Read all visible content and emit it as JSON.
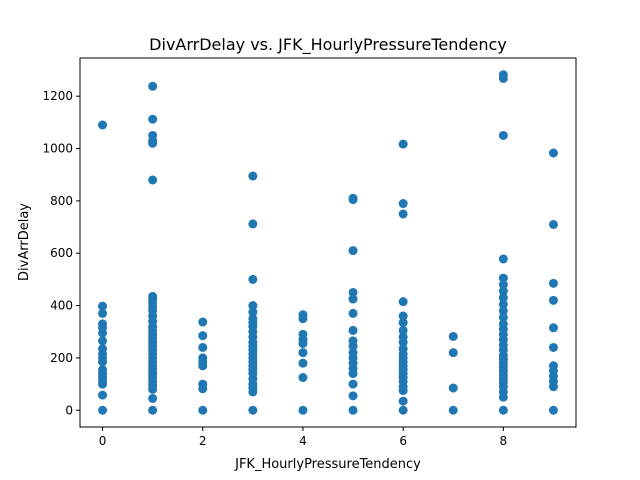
{
  "chart_data": {
    "type": "scatter",
    "title": "DivArrDelay vs. JFK_HourlyPressureTendency",
    "xlabel": "JFK_HourlyPressureTendency",
    "ylabel": "DivArrDelay",
    "xlim": [
      -0.45,
      9.45
    ],
    "ylim": [
      -64,
      1346
    ],
    "xticks": [
      0,
      2,
      4,
      6,
      8
    ],
    "yticks": [
      0,
      200,
      400,
      600,
      800,
      1000,
      1200
    ],
    "grid": false,
    "marker_color": "#1f77b4",
    "series": [
      {
        "points": [
          [
            0,
            0
          ],
          [
            0,
            58
          ],
          [
            0,
            100
          ],
          [
            0,
            112
          ],
          [
            0,
            125
          ],
          [
            0,
            140
          ],
          [
            0,
            155
          ],
          [
            0,
            185
          ],
          [
            0,
            200
          ],
          [
            0,
            215
          ],
          [
            0,
            235
          ],
          [
            0,
            265
          ],
          [
            0,
            295
          ],
          [
            0,
            315
          ],
          [
            0,
            330
          ],
          [
            0,
            370
          ],
          [
            0,
            398
          ],
          [
            0,
            1090
          ],
          [
            1,
            0
          ],
          [
            1,
            45
          ],
          [
            1,
            80
          ],
          [
            1,
            95
          ],
          [
            1,
            110
          ],
          [
            1,
            125
          ],
          [
            1,
            140
          ],
          [
            1,
            155
          ],
          [
            1,
            170
          ],
          [
            1,
            185
          ],
          [
            1,
            200
          ],
          [
            1,
            215
          ],
          [
            1,
            230
          ],
          [
            1,
            245
          ],
          [
            1,
            260
          ],
          [
            1,
            275
          ],
          [
            1,
            290
          ],
          [
            1,
            305
          ],
          [
            1,
            320
          ],
          [
            1,
            340
          ],
          [
            1,
            360
          ],
          [
            1,
            380
          ],
          [
            1,
            395
          ],
          [
            1,
            410
          ],
          [
            1,
            425
          ],
          [
            1,
            435
          ],
          [
            1,
            880
          ],
          [
            1,
            1020
          ],
          [
            1,
            1030
          ],
          [
            1,
            1050
          ],
          [
            1,
            1112
          ],
          [
            1,
            1238
          ],
          [
            2,
            0
          ],
          [
            2,
            82
          ],
          [
            2,
            100
          ],
          [
            2,
            170
          ],
          [
            2,
            185
          ],
          [
            2,
            200
          ],
          [
            2,
            240
          ],
          [
            2,
            285
          ],
          [
            2,
            337
          ],
          [
            3,
            0
          ],
          [
            3,
            70
          ],
          [
            3,
            85
          ],
          [
            3,
            100
          ],
          [
            3,
            120
          ],
          [
            3,
            140
          ],
          [
            3,
            155
          ],
          [
            3,
            170
          ],
          [
            3,
            185
          ],
          [
            3,
            200
          ],
          [
            3,
            215
          ],
          [
            3,
            230
          ],
          [
            3,
            245
          ],
          [
            3,
            260
          ],
          [
            3,
            280
          ],
          [
            3,
            300
          ],
          [
            3,
            320
          ],
          [
            3,
            335
          ],
          [
            3,
            350
          ],
          [
            3,
            375
          ],
          [
            3,
            400
          ],
          [
            3,
            500
          ],
          [
            3,
            712
          ],
          [
            3,
            895
          ],
          [
            4,
            0
          ],
          [
            4,
            125
          ],
          [
            4,
            180
          ],
          [
            4,
            220
          ],
          [
            4,
            255
          ],
          [
            4,
            270
          ],
          [
            4,
            290
          ],
          [
            4,
            350
          ],
          [
            4,
            365
          ],
          [
            5,
            0
          ],
          [
            5,
            55
          ],
          [
            5,
            100
          ],
          [
            5,
            140
          ],
          [
            5,
            160
          ],
          [
            5,
            180
          ],
          [
            5,
            200
          ],
          [
            5,
            220
          ],
          [
            5,
            245
          ],
          [
            5,
            265
          ],
          [
            5,
            305
          ],
          [
            5,
            370
          ],
          [
            5,
            425
          ],
          [
            5,
            450
          ],
          [
            5,
            610
          ],
          [
            5,
            805
          ],
          [
            5,
            810
          ],
          [
            6,
            0
          ],
          [
            6,
            35
          ],
          [
            6,
            75
          ],
          [
            6,
            90
          ],
          [
            6,
            110
          ],
          [
            6,
            125
          ],
          [
            6,
            140
          ],
          [
            6,
            155
          ],
          [
            6,
            170
          ],
          [
            6,
            185
          ],
          [
            6,
            200
          ],
          [
            6,
            215
          ],
          [
            6,
            235
          ],
          [
            6,
            260
          ],
          [
            6,
            280
          ],
          [
            6,
            305
          ],
          [
            6,
            335
          ],
          [
            6,
            360
          ],
          [
            6,
            415
          ],
          [
            6,
            750
          ],
          [
            6,
            790
          ],
          [
            6,
            1017
          ],
          [
            7,
            0
          ],
          [
            7,
            85
          ],
          [
            7,
            220
          ],
          [
            7,
            282
          ],
          [
            8,
            0
          ],
          [
            8,
            50
          ],
          [
            8,
            70
          ],
          [
            8,
            90
          ],
          [
            8,
            105
          ],
          [
            8,
            120
          ],
          [
            8,
            135
          ],
          [
            8,
            150
          ],
          [
            8,
            165
          ],
          [
            8,
            180
          ],
          [
            8,
            195
          ],
          [
            8,
            210
          ],
          [
            8,
            230
          ],
          [
            8,
            250
          ],
          [
            8,
            270
          ],
          [
            8,
            290
          ],
          [
            8,
            310
          ],
          [
            8,
            330
          ],
          [
            8,
            355
          ],
          [
            8,
            380
          ],
          [
            8,
            405
          ],
          [
            8,
            430
          ],
          [
            8,
            455
          ],
          [
            8,
            480
          ],
          [
            8,
            505
          ],
          [
            8,
            578
          ],
          [
            8,
            1050
          ],
          [
            8,
            1268
          ],
          [
            8,
            1282
          ],
          [
            9,
            0
          ],
          [
            9,
            90
          ],
          [
            9,
            110
          ],
          [
            9,
            130
          ],
          [
            9,
            150
          ],
          [
            9,
            170
          ],
          [
            9,
            240
          ],
          [
            9,
            315
          ],
          [
            9,
            420
          ],
          [
            9,
            485
          ],
          [
            9,
            710
          ],
          [
            9,
            983
          ]
        ]
      }
    ]
  }
}
